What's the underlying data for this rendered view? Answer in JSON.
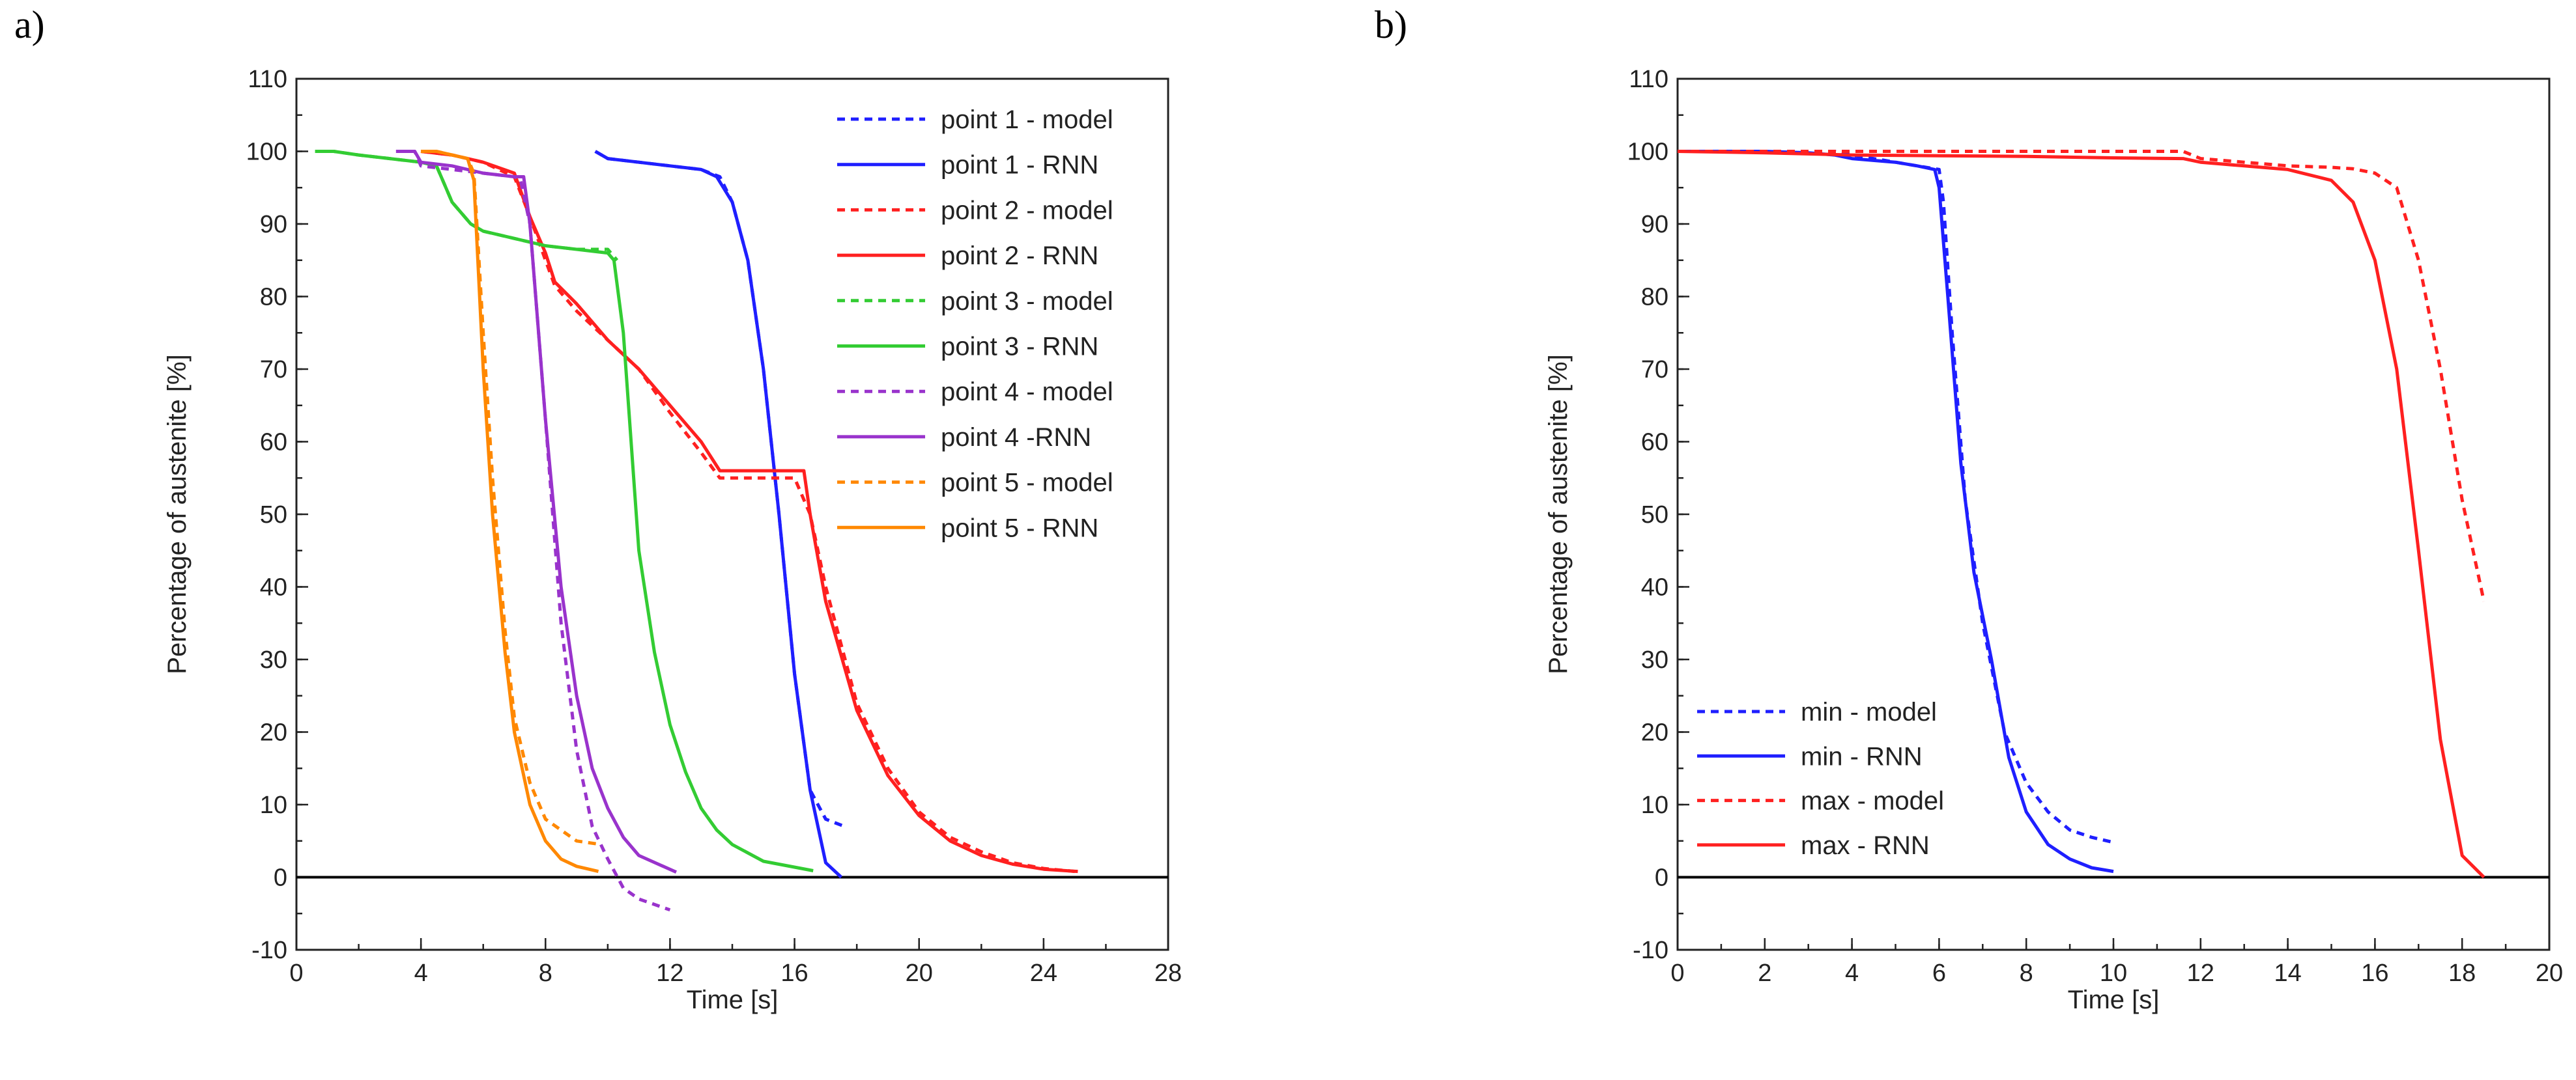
{
  "panels": [
    {
      "label": "a)"
    },
    {
      "label": "b)"
    }
  ],
  "chart_data": [
    {
      "type": "line",
      "panel": "a)",
      "xlabel": "Time [s]",
      "ylabel": "Percentage of austenite [%]",
      "xlim": [
        0,
        28
      ],
      "ylim": [
        -10,
        110
      ],
      "xticks": [
        0,
        4,
        8,
        12,
        16,
        20,
        24,
        28
      ],
      "yticks": [
        -10,
        0,
        10,
        20,
        30,
        40,
        50,
        60,
        70,
        80,
        90,
        100,
        110
      ],
      "xminor": 2,
      "yminor": 5,
      "baseline": 0,
      "legend_position": "top-right",
      "series": [
        {
          "name": "point 1 - model",
          "color": "#1f1fff",
          "style": "dashed",
          "x": [
            9.6,
            10.0,
            11.0,
            12.0,
            13.0,
            13.6,
            14.0,
            14.5,
            15.0,
            15.5,
            16.0,
            16.5,
            17.0,
            17.6
          ],
          "y": [
            100,
            99,
            98.5,
            98,
            97.5,
            96.5,
            93,
            85,
            70,
            50,
            28,
            12,
            8,
            7
          ]
        },
        {
          "name": "point 1 - RNN",
          "color": "#1f1fff",
          "style": "solid",
          "x": [
            9.6,
            10.0,
            11.0,
            12.0,
            13.0,
            13.5,
            14.0,
            14.5,
            15.0,
            15.5,
            16.0,
            16.5,
            17.0,
            17.5
          ],
          "y": [
            100,
            99,
            98.5,
            98,
            97.5,
            96.5,
            93,
            85,
            70,
            50,
            28,
            12,
            2,
            0
          ]
        },
        {
          "name": "point 2 - model",
          "color": "#ff2020",
          "style": "dashed",
          "x": [
            4.0,
            5.0,
            6.0,
            7.0,
            7.5,
            8.0,
            8.3,
            9.0,
            10.0,
            11.0,
            12.0,
            13.0,
            13.6,
            16.0,
            16.5,
            17.0,
            18.0,
            19.0,
            20.0,
            21.0,
            22.0,
            23.0,
            24.0,
            25.0
          ],
          "y": [
            100,
            99.5,
            98.5,
            96.5,
            91,
            85,
            81.5,
            78,
            74,
            70,
            64,
            58.5,
            55,
            55,
            50,
            40,
            24,
            15,
            9,
            5.5,
            3.5,
            2,
            1.2,
            0.8
          ]
        },
        {
          "name": "point 2 - RNN",
          "color": "#ff2020",
          "style": "solid",
          "x": [
            4.0,
            5.0,
            6.0,
            7.0,
            7.5,
            8.0,
            8.3,
            9.0,
            10.0,
            11.0,
            12.0,
            13.0,
            13.6,
            16.3,
            16.5,
            17.0,
            18.0,
            19.0,
            20.0,
            21.0,
            22.0,
            23.0,
            24.0,
            25.1
          ],
          "y": [
            100,
            99.5,
            98.5,
            97,
            91,
            86,
            82,
            79,
            74,
            70,
            65,
            60,
            56,
            56,
            50,
            38,
            23,
            14,
            8.5,
            5,
            3,
            1.8,
            1.1,
            0.8
          ]
        },
        {
          "name": "point 3 - model",
          "color": "#33cc33",
          "style": "dashed",
          "x": [
            0.6,
            1.2,
            2.0,
            3.0,
            4.0,
            4.5,
            5.0,
            5.6,
            6.0,
            7.0,
            8.0,
            9.0,
            10.0,
            10.3
          ],
          "y": [
            100,
            100,
            99.5,
            99,
            98.5,
            98,
            93,
            90,
            89,
            88,
            87,
            86.5,
            86.5,
            85
          ]
        },
        {
          "name": "point 3 - RNN",
          "color": "#33cc33",
          "style": "solid",
          "x": [
            0.6,
            1.2,
            2.0,
            3.0,
            4.0,
            4.5,
            5.0,
            5.6,
            6.0,
            7.0,
            8.0,
            9.0,
            10.0,
            10.2,
            10.5,
            11.0,
            11.5,
            12.0,
            12.5,
            13.0,
            13.5,
            14.0,
            15.0,
            16.6
          ],
          "y": [
            100,
            100,
            99.5,
            99,
            98.5,
            98,
            93,
            90,
            89,
            88,
            87,
            86.5,
            86,
            85,
            75,
            45,
            31,
            21,
            14.5,
            9.5,
            6.5,
            4.5,
            2.2,
            0.9
          ]
        },
        {
          "name": "point 4 - model",
          "color": "#9933cc",
          "style": "dashed",
          "x": [
            3.2,
            3.8,
            4.0,
            5.0,
            6.0,
            7.0,
            7.2,
            7.5,
            8.0,
            8.5,
            9.0,
            9.5,
            10.0,
            10.5,
            11.0,
            12.0
          ],
          "y": [
            100,
            100,
            98,
            97.5,
            97,
            96.5,
            96,
            90,
            63,
            35,
            17.5,
            7,
            2.5,
            -1.5,
            -3,
            -4.5
          ]
        },
        {
          "name": "point 4 -RNN",
          "color": "#9933cc",
          "style": "solid",
          "x": [
            3.2,
            3.8,
            4.0,
            5.0,
            6.0,
            7.0,
            7.3,
            7.5,
            8.0,
            8.5,
            9.0,
            9.5,
            10.0,
            10.5,
            11.0,
            12.2
          ],
          "y": [
            100,
            100,
            98.5,
            98,
            97,
            96.5,
            96.5,
            90,
            63,
            40,
            25,
            15,
            9.5,
            5.5,
            3,
            0.7
          ]
        },
        {
          "name": "point 5 - model",
          "color": "#ff8800",
          "style": "dashed",
          "x": [
            4.0,
            4.5,
            5.0,
            5.5,
            5.7,
            6.0,
            6.3,
            6.7,
            7.0,
            7.5,
            8.0,
            9.0,
            9.8
          ],
          "y": [
            100,
            100,
            99.5,
            99,
            97,
            75,
            55,
            34,
            22,
            13,
            8,
            5,
            4.5
          ]
        },
        {
          "name": "point 5 - RNN",
          "color": "#ff8800",
          "style": "solid",
          "x": [
            4.0,
            4.5,
            5.0,
            5.5,
            5.7,
            6.0,
            6.3,
            6.7,
            7.0,
            7.5,
            8.0,
            8.5,
            9.0,
            9.7
          ],
          "y": [
            100,
            100,
            99.5,
            99,
            96,
            70,
            50,
            31,
            20,
            10,
            5,
            2.5,
            1.5,
            0.8
          ]
        }
      ]
    },
    {
      "type": "line",
      "panel": "b)",
      "xlabel": "Time [s]",
      "ylabel": "Percentage of austenite [%]",
      "xlim": [
        0,
        20
      ],
      "ylim": [
        -10,
        110
      ],
      "xticks": [
        0,
        2,
        4,
        6,
        8,
        10,
        12,
        14,
        16,
        18,
        20
      ],
      "yticks": [
        -10,
        0,
        10,
        20,
        30,
        40,
        50,
        60,
        70,
        80,
        90,
        100,
        110
      ],
      "xminor": 1,
      "yminor": 5,
      "baseline": 0,
      "legend_position": "bottom-left",
      "series": [
        {
          "name": "min - model",
          "color": "#1f1fff",
          "style": "dashed",
          "x": [
            0,
            1,
            2,
            3,
            3.6,
            4,
            5,
            5.5,
            6,
            6.1,
            6.3,
            6.6,
            7.0,
            7.5,
            8.0,
            8.5,
            9.0,
            9.5,
            10.0
          ],
          "y": [
            100,
            100,
            100,
            100,
            100,
            99.5,
            98.5,
            98,
            97.5,
            93,
            75,
            52,
            35,
            20,
            13,
            9,
            6.5,
            5.5,
            4.8
          ]
        },
        {
          "name": "min - RNN",
          "color": "#1f1fff",
          "style": "solid",
          "x": [
            0,
            1,
            2,
            3,
            3.6,
            4,
            5,
            5.5,
            5.9,
            6.0,
            6.2,
            6.5,
            6.8,
            7.2,
            7.6,
            8.0,
            8.5,
            9.0,
            9.5,
            10.0
          ],
          "y": [
            100,
            100,
            100,
            99.8,
            99.5,
            99,
            98.5,
            98,
            97.5,
            95,
            80,
            57,
            42,
            30,
            16.5,
            9,
            4.5,
            2.5,
            1.3,
            0.8
          ]
        },
        {
          "name": "max - model",
          "color": "#ff2020",
          "style": "dashed",
          "x": [
            0,
            2,
            4,
            6,
            8,
            10,
            11.6,
            12,
            13,
            14,
            15,
            15.5,
            16.0,
            16.5,
            17.0,
            17.5,
            18.0,
            18.5
          ],
          "y": [
            100,
            100,
            100,
            100,
            100,
            100,
            100,
            99,
            98.5,
            98,
            97.8,
            97.6,
            97,
            95,
            85,
            70,
            52,
            38
          ]
        },
        {
          "name": "max - RNN",
          "color": "#ff2020",
          "style": "solid",
          "x": [
            0,
            2,
            4,
            6,
            8,
            10,
            11.6,
            12,
            13,
            14,
            15,
            15.5,
            16.0,
            16.5,
            17.0,
            17.5,
            18.0,
            18.5
          ],
          "y": [
            100,
            99.8,
            99.5,
            99.4,
            99.3,
            99.1,
            99,
            98.5,
            98,
            97.5,
            96,
            93,
            85,
            70,
            45,
            19,
            3,
            0
          ]
        }
      ]
    }
  ]
}
